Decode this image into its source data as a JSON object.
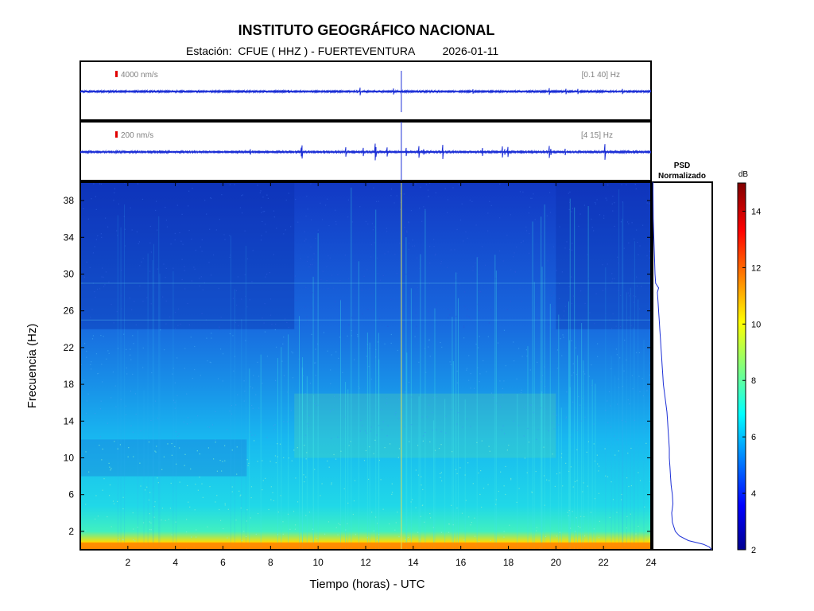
{
  "header": {
    "title": "INSTITUTO GEOGRÁFICO NACIONAL",
    "station_label": "Estación:",
    "station": "CFUE ( HHZ ) - FUERTEVENTURA",
    "date": "2026-01-11"
  },
  "colors": {
    "trace": "#1c2fd6",
    "scale_bar": "#e00000",
    "background_low": "#1233c8"
  },
  "chart_data": [
    {
      "type": "line",
      "name": "broadband-trace",
      "amplitude_label": "4000 nm/s",
      "band_label": "[0.1 40] Hz",
      "event_hour": 13.5
    },
    {
      "type": "line",
      "name": "filtered-trace",
      "amplitude_label": "200 nm/s",
      "band_label": "[4 15] Hz",
      "event_hour": 13.5
    },
    {
      "type": "heatmap",
      "name": "spectrogram",
      "xlabel": "Tiempo (horas) - UTC",
      "ylabel": "Frecuencia  (Hz)",
      "xlim": [
        0,
        24
      ],
      "ylim": [
        0,
        40
      ],
      "x_ticks": [
        2,
        4,
        6,
        8,
        10,
        12,
        14,
        16,
        18,
        20,
        22,
        24
      ],
      "y_ticks": [
        2,
        6,
        10,
        14,
        18,
        22,
        26,
        30,
        34,
        38
      ],
      "event_hour": 13.5
    },
    {
      "type": "line",
      "name": "psd",
      "title_line1": "PSD",
      "title_line2": "Normalizado",
      "points": [
        [
          0.99,
          0.0
        ],
        [
          0.95,
          0.3
        ],
        [
          0.85,
          0.6
        ],
        [
          0.6,
          1.0
        ],
        [
          0.45,
          1.5
        ],
        [
          0.38,
          2.0
        ],
        [
          0.33,
          3.0
        ],
        [
          0.32,
          4.0
        ],
        [
          0.34,
          5.0
        ],
        [
          0.33,
          6.0
        ],
        [
          0.31,
          7.0
        ],
        [
          0.3,
          8.0
        ],
        [
          0.29,
          9.0
        ],
        [
          0.28,
          10.0
        ],
        [
          0.28,
          11.0
        ],
        [
          0.27,
          12.0
        ],
        [
          0.26,
          13.0
        ],
        [
          0.25,
          14.0
        ],
        [
          0.24,
          15.0
        ],
        [
          0.22,
          16.0
        ],
        [
          0.2,
          17.0
        ],
        [
          0.18,
          18.0
        ],
        [
          0.17,
          19.0
        ],
        [
          0.16,
          20.0
        ],
        [
          0.15,
          21.0
        ],
        [
          0.14,
          22.0
        ],
        [
          0.13,
          23.0
        ],
        [
          0.12,
          24.0
        ],
        [
          0.11,
          25.0
        ],
        [
          0.1,
          26.0
        ],
        [
          0.09,
          27.0
        ],
        [
          0.08,
          28.0
        ],
        [
          0.1,
          28.5
        ],
        [
          0.05,
          29.0
        ],
        [
          0.04,
          30.0
        ],
        [
          0.03,
          32.0
        ],
        [
          0.02,
          34.0
        ],
        [
          0.01,
          36.0
        ],
        [
          0.005,
          40.0
        ]
      ]
    },
    {
      "type": "heatmap",
      "name": "colorbar",
      "label": "dB",
      "range": [
        2,
        15
      ],
      "ticks": [
        2,
        4,
        6,
        8,
        10,
        12,
        14
      ]
    }
  ]
}
